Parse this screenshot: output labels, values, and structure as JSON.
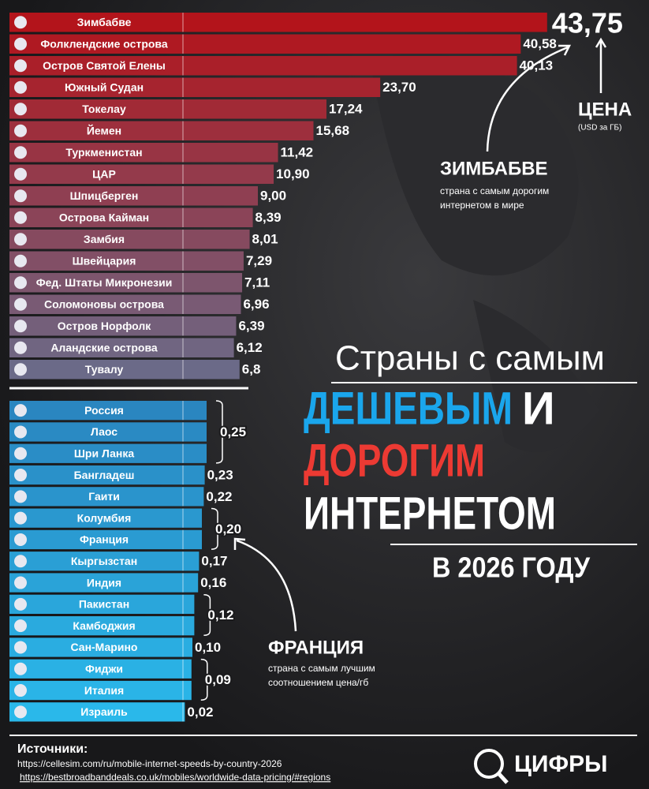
{
  "chart_data": [
    {
      "type": "hbar",
      "colors": [
        "#b3141b",
        "#6b6a88"
      ],
      "xlim": [
        0,
        45
      ],
      "categories": [
        "Зимбабве",
        "Фолклендские острова",
        "Остров Святой Елены",
        "Южный Судан",
        "Токелау",
        "Йемен",
        "Туркменистан",
        "ЦАР",
        "Шпицберген",
        "Острова Кайман",
        "Замбия",
        "Швейцария",
        "Фед. Штаты Микронезии",
        "Соломоновы острова",
        "Остров Норфолк",
        "Аландские острова",
        "Тувалу"
      ],
      "values": [
        43.75,
        40.58,
        40.13,
        23.7,
        17.24,
        15.68,
        11.42,
        10.9,
        9.0,
        8.39,
        8.01,
        7.29,
        7.11,
        6.96,
        6.39,
        6.12,
        6.8
      ],
      "value_labels": [
        "43,75",
        "40,58",
        "40,13",
        "23,70",
        "17,24",
        "15,68",
        "11,42",
        "10,90",
        "9,00",
        "8,39",
        "8,01",
        "7,29",
        "7,11",
        "6,96",
        "6,39",
        "6,12",
        "6,8"
      ]
    },
    {
      "type": "hbar",
      "colors": [
        "#2a86c0",
        "#2ab8ea"
      ],
      "xlim": [
        0,
        0.25
      ],
      "categories": [
        "Россия",
        "Лаос",
        "Шри Ланка",
        "Бангладеш",
        "Гаити",
        "Колумбия",
        "Франция",
        "Кыргызстан",
        "Индия",
        "Пакистан",
        "Камбоджия",
        "Сан-Марино",
        "Фиджи",
        "Италия",
        "Израиль"
      ],
      "values": [
        0.25,
        0.25,
        0.25,
        0.23,
        0.22,
        0.2,
        0.2,
        0.17,
        0.16,
        0.12,
        0.12,
        0.1,
        0.09,
        0.09,
        0.02
      ],
      "value_labels": [
        "0,25",
        null,
        null,
        "0,23",
        "0,22",
        "0,20",
        null,
        "0,17",
        "0,16",
        "0,12",
        null,
        "0,10",
        "0,09",
        null,
        "0,02"
      ]
    }
  ],
  "header": {
    "line1": "Страны с самым",
    "cheap": "ДЕШЕВЫМ",
    "and": "И",
    "expensive": "ДОРОГИМ",
    "line3": "ИНТЕРНЕТОМ",
    "year": "В 2026 ГОДУ"
  },
  "notes": {
    "price": "ЦЕНА",
    "unit": "(USD за ГБ)",
    "top_name": "ЗИМБАБВЕ",
    "top_text": [
      "страна с самым дорогим",
      "интернетом в мире"
    ],
    "best_name": "ФРАНЦИЯ",
    "best_text": [
      "страна с самым лучшим",
      "соотношением цена/гб"
    ]
  },
  "sources": {
    "title": "Источники:",
    "links": [
      "https://cellesim.com/ru/mobile-internet-speeds-by-country-2026",
      "https://bestbroadbanddeals.co.uk/mobiles/worldwide-data-pricing/#regions"
    ]
  },
  "logo": "ЦИФРЫ"
}
